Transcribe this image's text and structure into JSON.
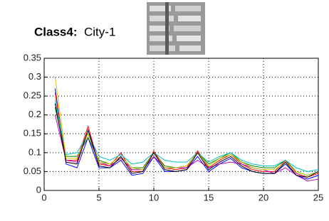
{
  "chart_data": {
    "type": "line",
    "title_label": "Class4:",
    "title": "City-1",
    "x": [
      1,
      2,
      3,
      4,
      5,
      6,
      7,
      8,
      9,
      10,
      11,
      12,
      13,
      14,
      15,
      16,
      17,
      18,
      19,
      20,
      21,
      22,
      23,
      24,
      25
    ],
    "xlim": [
      0,
      25
    ],
    "xticks": [
      0,
      5,
      10,
      15,
      20,
      25
    ],
    "ylim": [
      0,
      0.35
    ],
    "yticks": [
      0,
      0.05,
      0.1,
      0.15,
      0.2,
      0.25,
      0.3,
      0.35
    ],
    "grid": true,
    "series": [
      {
        "color": "#0000ff",
        "values": [
          0.27,
          0.07,
          0.06,
          0.14,
          0.06,
          0.06,
          0.08,
          0.04,
          0.045,
          0.09,
          0.05,
          0.05,
          0.055,
          0.09,
          0.05,
          0.07,
          0.085,
          0.06,
          0.05,
          0.045,
          0.045,
          0.07,
          0.04,
          0.03,
          0.04
        ]
      },
      {
        "color": "#008000",
        "values": [
          0.22,
          0.09,
          0.09,
          0.14,
          0.08,
          0.07,
          0.09,
          0.06,
          0.06,
          0.1,
          0.065,
          0.06,
          0.065,
          0.1,
          0.07,
          0.085,
          0.1,
          0.075,
          0.065,
          0.06,
          0.06,
          0.08,
          0.05,
          0.04,
          0.05
        ]
      },
      {
        "color": "#ff0000",
        "values": [
          0.26,
          0.08,
          0.08,
          0.17,
          0.07,
          0.065,
          0.1,
          0.05,
          0.05,
          0.105,
          0.06,
          0.055,
          0.06,
          0.105,
          0.06,
          0.08,
          0.095,
          0.07,
          0.055,
          0.05,
          0.05,
          0.08,
          0.045,
          0.035,
          0.045
        ]
      },
      {
        "color": "#00bfbf",
        "values": [
          0.24,
          0.095,
          0.1,
          0.15,
          0.09,
          0.08,
          0.095,
          0.07,
          0.075,
          0.1,
          0.08,
          0.075,
          0.075,
          0.1,
          0.075,
          0.09,
          0.1,
          0.08,
          0.07,
          0.065,
          0.065,
          0.08,
          0.06,
          0.05,
          0.055
        ]
      },
      {
        "color": "#bf00bf",
        "values": [
          0.2,
          0.08,
          0.075,
          0.16,
          0.075,
          0.065,
          0.085,
          0.055,
          0.055,
          0.09,
          0.06,
          0.06,
          0.06,
          0.08,
          0.06,
          0.07,
          0.075,
          0.07,
          0.06,
          0.055,
          0.045,
          0.06,
          0.04,
          0.025,
          0.03
        ]
      },
      {
        "color": "#c8c800",
        "values": [
          0.3,
          0.085,
          0.085,
          0.15,
          0.075,
          0.07,
          0.09,
          0.06,
          0.055,
          0.1,
          0.06,
          0.06,
          0.065,
          0.1,
          0.065,
          0.085,
          0.095,
          0.075,
          0.06,
          0.055,
          0.055,
          0.075,
          0.05,
          0.04,
          0.05
        ]
      },
      {
        "color": "#000000",
        "values": [
          0.23,
          0.075,
          0.07,
          0.16,
          0.065,
          0.06,
          0.09,
          0.045,
          0.05,
          0.1,
          0.055,
          0.05,
          0.055,
          0.1,
          0.055,
          0.075,
          0.09,
          0.065,
          0.05,
          0.045,
          0.045,
          0.075,
          0.04,
          0.035,
          0.05
        ]
      }
    ]
  }
}
